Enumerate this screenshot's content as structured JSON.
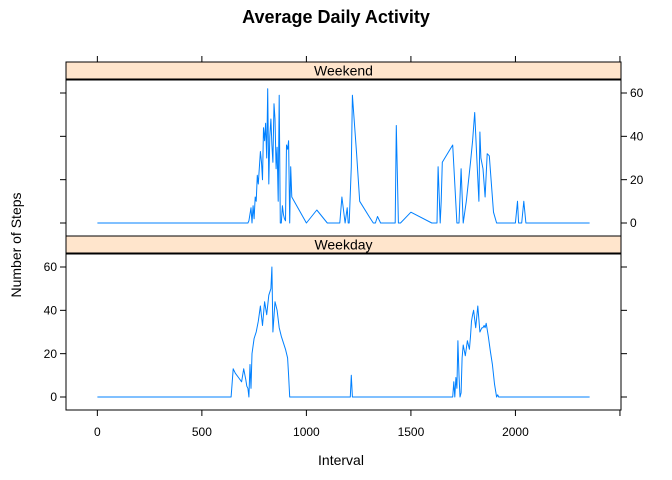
{
  "chart_data": {
    "type": "line",
    "title": "Average Daily Activity",
    "xlabel": "Interval",
    "ylabel": "Number of Steps",
    "xlim": [
      -150,
      2505
    ],
    "ylim": [
      -6,
      66
    ],
    "x_ticks": [
      0,
      500,
      1000,
      1500,
      2000
    ],
    "y_ticks": [
      0,
      20,
      40,
      60
    ],
    "grid": false,
    "series_color": "#0080FF",
    "strip_color": "#FFE5CC",
    "panels": [
      {
        "name": "Weekend",
        "x": [
          0,
          720,
          725,
          735,
          740,
          745,
          750,
          755,
          760,
          765,
          770,
          775,
          780,
          785,
          790,
          795,
          800,
          805,
          810,
          815,
          820,
          825,
          830,
          835,
          840,
          845,
          850,
          855,
          860,
          865,
          870,
          875,
          880,
          885,
          890,
          895,
          900,
          905,
          910,
          915,
          920,
          925,
          930,
          1000,
          1050,
          1100,
          1155,
          1160,
          1170,
          1185,
          1195,
          1200,
          1205,
          1215,
          1220,
          1240,
          1255,
          1300,
          1320,
          1330,
          1340,
          1355,
          1360,
          1365,
          1375,
          1385,
          1400,
          1425,
          1430,
          1440,
          1450,
          1500,
          1600,
          1625,
          1630,
          1640,
          1645,
          1650,
          1700,
          1720,
          1730,
          1740,
          1750,
          1765,
          1785,
          1795,
          1805,
          1815,
          1825,
          1830,
          1835,
          1845,
          1855,
          1865,
          1875,
          1895,
          1910,
          1920,
          1925,
          1930,
          1945,
          2000,
          2010,
          2015,
          2020,
          2030,
          2040,
          2050,
          2355
        ],
        "y": [
          0,
          0,
          1,
          7,
          0,
          8,
          2,
          12,
          10,
          22,
          18,
          26,
          33,
          28,
          20,
          44,
          38,
          46,
          30,
          62,
          18,
          40,
          48,
          36,
          28,
          55,
          48,
          25,
          35,
          10,
          59,
          0,
          0,
          8,
          4,
          2,
          1,
          36,
          34,
          38,
          0,
          26,
          12,
          0,
          6,
          0,
          0,
          0,
          12,
          0,
          7,
          0,
          0,
          26,
          59,
          32,
          10,
          3,
          0,
          0,
          3,
          0,
          0,
          0,
          0,
          0,
          0,
          0,
          45,
          0,
          0,
          5,
          0,
          0,
          26,
          0,
          10,
          28,
          36,
          0,
          0,
          25,
          0,
          10,
          28,
          38,
          51,
          30,
          10,
          42,
          30,
          25,
          12,
          32,
          31,
          5,
          0,
          0,
          0,
          0,
          0,
          0,
          10,
          0,
          0,
          0,
          10,
          0,
          0
        ]
      },
      {
        "name": "Weekday",
        "x": [
          0,
          640,
          650,
          660,
          675,
          690,
          700,
          710,
          715,
          720,
          725,
          730,
          735,
          740,
          750,
          760,
          770,
          780,
          790,
          800,
          810,
          820,
          830,
          835,
          840,
          850,
          860,
          870,
          880,
          890,
          900,
          910,
          915,
          920,
          1000,
          1100,
          1200,
          1210,
          1215,
          1220,
          1300,
          1500,
          1700,
          1705,
          1710,
          1715,
          1720,
          1725,
          1730,
          1735,
          1740,
          1745,
          1750,
          1760,
          1770,
          1780,
          1785,
          1790,
          1795,
          1800,
          1810,
          1820,
          1830,
          1835,
          1840,
          1845,
          1850,
          1855,
          1860,
          1870,
          1880,
          1890,
          1900,
          1910,
          1915,
          1920,
          1925,
          2000,
          2100,
          2200,
          2355
        ],
        "y": [
          0,
          0,
          13,
          11,
          9,
          7,
          13,
          8,
          5,
          4,
          0,
          15,
          4,
          20,
          27,
          30,
          35,
          42,
          33,
          44,
          38,
          47,
          50,
          60,
          30,
          44,
          40,
          32,
          28,
          25,
          22,
          18,
          10,
          0,
          0,
          0,
          0,
          0,
          10,
          0,
          0,
          0,
          0,
          7,
          0,
          9,
          4,
          26,
          10,
          0,
          2,
          18,
          24,
          19,
          26,
          22,
          28,
          35,
          38,
          40,
          32,
          42,
          30,
          31,
          32,
          32,
          33,
          32,
          34,
          28,
          21,
          15,
          6,
          0,
          1,
          0,
          0,
          0,
          0,
          0,
          0
        ]
      }
    ]
  }
}
